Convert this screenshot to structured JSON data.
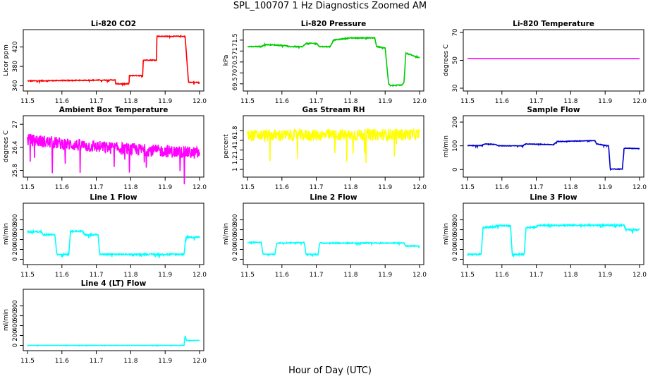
{
  "figure": {
    "title": "SPL_100707  1 Hz Diagnostics Zoomed AM",
    "xlabel": "Hour of Day (UTC)"
  },
  "colors": {
    "red": "#ff0000",
    "green": "#00cc00",
    "magenta": "#ff00ff",
    "yellow": "#ffff00",
    "blue": "#0000cc",
    "cyan": "#00ffff"
  },
  "chart_data": [
    {
      "type": "line",
      "title": "Li-820 CO2",
      "ylabel": "Licor ppm",
      "color": "#ff0000",
      "xlim": [
        11.5,
        12.0
      ],
      "ylim": [
        335,
        450
      ],
      "xticks": [
        "11.5",
        "11.6",
        "11.7",
        "11.8",
        "11.9",
        "12.0"
      ],
      "yticks": [
        340,
        380,
        420
      ],
      "noise": 0.8,
      "series": [
        {
          "x": [
            11.5,
            11.755,
            11.756,
            11.795,
            11.796,
            11.835,
            11.836,
            11.875,
            11.876,
            11.958,
            11.968,
            12.0
          ],
          "y": [
            350,
            352,
            344,
            344,
            361,
            361,
            393,
            393,
            442,
            442,
            347,
            347
          ]
        }
      ]
    },
    {
      "type": "line",
      "title": "Li-820 Pressure",
      "ylabel": "kPa",
      "color": "#00cc00",
      "xlim": [
        11.5,
        12.0
      ],
      "ylim": [
        69.3,
        71.85
      ],
      "xticks": [
        "11.5",
        "11.6",
        "11.7",
        "11.8",
        "11.9",
        "12.0"
      ],
      "yticks": [
        69.5,
        70.0,
        70.5,
        71.0,
        71.5
      ],
      "noise": 0.02,
      "series": [
        {
          "x": [
            11.5,
            11.54,
            11.55,
            11.61,
            11.62,
            11.66,
            11.67,
            11.7,
            11.71,
            11.74,
            11.75,
            11.8,
            11.87,
            11.875,
            11.9,
            11.91,
            11.915,
            11.95,
            11.955,
            11.96,
            12.0
          ],
          "y": [
            71.2,
            71.2,
            71.3,
            71.25,
            71.2,
            71.2,
            71.35,
            71.35,
            71.2,
            71.2,
            71.5,
            71.6,
            71.6,
            71.2,
            71.15,
            69.5,
            69.42,
            69.45,
            69.6,
            70.9,
            70.7
          ]
        }
      ]
    },
    {
      "type": "line",
      "title": "Li-820 Temperature",
      "ylabel": "degrees C",
      "color": "#ff00ff",
      "xlim": [
        11.5,
        12.0
      ],
      "ylim": [
        30,
        70
      ],
      "xticks": [
        "11.5",
        "11.6",
        "11.7",
        "11.8",
        "11.9",
        "12.0"
      ],
      "yticks": [
        30,
        50,
        70
      ],
      "noise": 0,
      "series": [
        {
          "x": [
            11.5,
            12.0
          ],
          "y": [
            51.2,
            51.2
          ]
        }
      ]
    },
    {
      "type": "line",
      "title": "Ambient Box Temperature",
      "ylabel": "degrees C",
      "color": "#ff00ff",
      "xlim": [
        11.5,
        12.0
      ],
      "ylim": [
        25.7,
        27.15
      ],
      "xticks": [
        "11.5",
        "11.6",
        "11.7",
        "11.8",
        "11.9",
        "12.0"
      ],
      "yticks": [
        25.8,
        26.4,
        27.0
      ],
      "noise": 0.16,
      "series": [
        {
          "x": [
            11.5,
            11.65,
            11.8,
            12.0
          ],
          "y": [
            26.6,
            26.45,
            26.35,
            26.25
          ]
        }
      ]
    },
    {
      "type": "line",
      "title": "Gas Stream RH",
      "ylabel": "percent",
      "color": "#ffff00",
      "xlim": [
        11.5,
        12.0
      ],
      "ylim": [
        0.9,
        2.05
      ],
      "xticks": [
        "11.5",
        "11.6",
        "11.7",
        "11.8",
        "11.9",
        "12.0"
      ],
      "yticks": [
        1.0,
        1.2,
        1.4,
        1.6,
        1.8
      ],
      "noise": 0.12,
      "series": [
        {
          "x": [
            11.5,
            12.0
          ],
          "y": [
            1.7,
            1.72
          ]
        }
      ]
    },
    {
      "type": "line",
      "title": "Sample Flow",
      "ylabel": "ml/min",
      "color": "#0000cc",
      "xlim": [
        11.5,
        12.0
      ],
      "ylim": [
        -20,
        215
      ],
      "xticks": [
        "11.5",
        "11.6",
        "11.7",
        "11.8",
        "11.9",
        "12.0"
      ],
      "yticks": [
        0,
        100,
        200
      ],
      "noise": 1.2,
      "series": [
        {
          "x": [
            11.5,
            11.54,
            11.55,
            11.58,
            11.59,
            11.66,
            11.67,
            11.75,
            11.76,
            11.87,
            11.875,
            11.91,
            11.915,
            11.95,
            11.955,
            12.0
          ],
          "y": [
            101,
            101,
            108,
            106,
            100,
            100,
            108,
            105,
            118,
            122,
            108,
            100,
            2,
            2,
            90,
            88
          ]
        }
      ]
    },
    {
      "type": "line",
      "title": "Line 1 Flow",
      "ylabel": "ml/min",
      "color": "#00ffff",
      "xlim": [
        11.5,
        12.0
      ],
      "ylim": [
        -50,
        1080
      ],
      "xticks": [
        "11.5",
        "11.6",
        "11.7",
        "11.8",
        "11.9",
        "12.0"
      ],
      "yticks": [
        0,
        200,
        400,
        600,
        800
      ],
      "noise": 14,
      "series": [
        {
          "x": [
            11.5,
            11.54,
            11.545,
            11.58,
            11.585,
            11.62,
            11.625,
            11.66,
            11.665,
            11.705,
            11.71,
            11.955,
            11.96,
            12.0
          ],
          "y": [
            560,
            560,
            500,
            500,
            100,
            100,
            570,
            570,
            500,
            500,
            100,
            100,
            450,
            450
          ]
        }
      ]
    },
    {
      "type": "line",
      "title": "Line 2 Flow",
      "ylabel": "ml/min",
      "color": "#00ffff",
      "xlim": [
        11.5,
        12.0
      ],
      "ylim": [
        -50,
        1080
      ],
      "xticks": [
        "11.5",
        "11.6",
        "11.7",
        "11.8",
        "11.9",
        "12.0"
      ],
      "yticks": [
        0,
        200,
        400,
        600,
        800
      ],
      "noise": 10,
      "series": [
        {
          "x": [
            11.5,
            11.54,
            11.545,
            11.58,
            11.585,
            11.665,
            11.67,
            11.705,
            11.71,
            11.955,
            11.96,
            12.0
          ],
          "y": [
            340,
            340,
            100,
            100,
            330,
            340,
            100,
            100,
            330,
            330,
            270,
            270
          ]
        }
      ]
    },
    {
      "type": "line",
      "title": "Line 3 Flow",
      "ylabel": "ml/min",
      "color": "#00ffff",
      "xlim": [
        11.5,
        12.0
      ],
      "ylim": [
        -50,
        1080
      ],
      "xticks": [
        "11.5",
        "11.6",
        "11.7",
        "11.8",
        "11.9",
        "12.0"
      ],
      "yticks": [
        0,
        200,
        400,
        600,
        800
      ],
      "noise": 14,
      "series": [
        {
          "x": [
            11.5,
            11.54,
            11.545,
            11.58,
            11.585,
            11.625,
            11.63,
            11.665,
            11.67,
            11.7,
            11.705,
            11.955,
            11.96,
            12.0
          ],
          "y": [
            100,
            100,
            640,
            660,
            680,
            680,
            100,
            100,
            640,
            660,
            690,
            690,
            600,
            600
          ]
        }
      ]
    },
    {
      "type": "line",
      "title": "Line 4 (LT) Flow",
      "ylabel": "ml/min",
      "color": "#00ffff",
      "xlim": [
        11.5,
        12.0
      ],
      "ylim": [
        -50,
        1080
      ],
      "xticks": [
        "11.5",
        "11.6",
        "11.7",
        "11.8",
        "11.9",
        "12.0"
      ],
      "yticks": [
        0,
        200,
        400,
        600,
        800
      ],
      "noise": 2,
      "series": [
        {
          "x": [
            11.5,
            11.955,
            11.958,
            11.962,
            11.965,
            12.0
          ],
          "y": [
            0,
            0,
            200,
            100,
            100,
            100
          ]
        }
      ]
    }
  ]
}
